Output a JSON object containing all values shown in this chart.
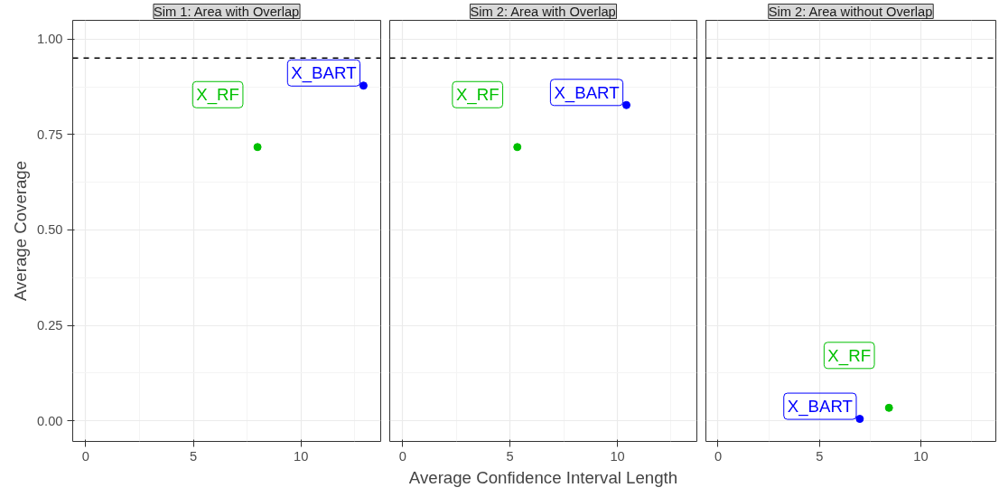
{
  "chart_data": [
    {
      "type": "scatter",
      "title": "Sim 1: Area with Overlap",
      "ylabel": "Average Coverage",
      "xlim": [
        -0.6,
        13.7
      ],
      "ylim": [
        -0.054,
        1.049
      ],
      "xticks": [
        0,
        5,
        10
      ],
      "yticks": [
        {
          "value": 0,
          "label": "0.00"
        },
        {
          "value": 0.25,
          "label": "0.25"
        },
        {
          "value": 0.5,
          "label": "0.50"
        },
        {
          "value": 0.75,
          "label": "0.75"
        },
        {
          "value": 1,
          "label": "1.00"
        }
      ],
      "grid": true,
      "marker": "circle",
      "series": [
        {
          "name": "X_BART",
          "color": "#0000ff",
          "x": [
            12.9
          ],
          "values": [
            0.878
          ]
        },
        {
          "name": "X_RF",
          "color": "#00c000",
          "x": [
            7.98
          ],
          "values": [
            0.717
          ]
        }
      ],
      "ref_lines": [
        {
          "axis": "y",
          "value": 0.95,
          "line_style": "dashed",
          "color": "#000000"
        }
      ]
    },
    {
      "type": "scatter",
      "title": "Sim 2: Area with Overlap",
      "xlabel": "Average Confidence Interval Length",
      "xlim": [
        -0.6,
        13.7
      ],
      "ylim": [
        -0.054,
        1.049
      ],
      "xticks": [
        0,
        5,
        10
      ],
      "yticks": [
        0,
        0.25,
        0.5,
        0.75,
        1
      ],
      "grid": true,
      "marker": "circle",
      "tick_labels": "x",
      "series": [
        {
          "name": "X_BART",
          "color": "#0000ff",
          "x": [
            10.42
          ],
          "values": [
            0.827
          ]
        },
        {
          "name": "X_RF",
          "color": "#00c000",
          "x": [
            5.34
          ],
          "values": [
            0.717
          ]
        }
      ],
      "ref_lines": [
        {
          "axis": "y",
          "value": 0.95,
          "line_style": "dashed",
          "color": "#000000"
        }
      ]
    },
    {
      "type": "scatter",
      "title": "Sim 2: Area without Overlap",
      "xlim": [
        -0.6,
        13.7
      ],
      "ylim": [
        -0.054,
        1.049
      ],
      "xticks": [
        0,
        5,
        10
      ],
      "yticks": [
        0,
        0.25,
        0.5,
        0.75,
        1
      ],
      "grid": true,
      "marker": "circle",
      "tick_labels": "x",
      "series": [
        {
          "name": "X_BART",
          "color": "#0000ff",
          "x": [
            6.99
          ],
          "values": [
            0.005
          ]
        },
        {
          "name": "X_RF",
          "color": "#00c000",
          "x": [
            8.43
          ],
          "values": [
            0.034
          ]
        }
      ],
      "ref_lines": [
        {
          "axis": "y",
          "value": 0.95,
          "line_style": "dashed",
          "color": "#000000"
        }
      ]
    }
  ]
}
